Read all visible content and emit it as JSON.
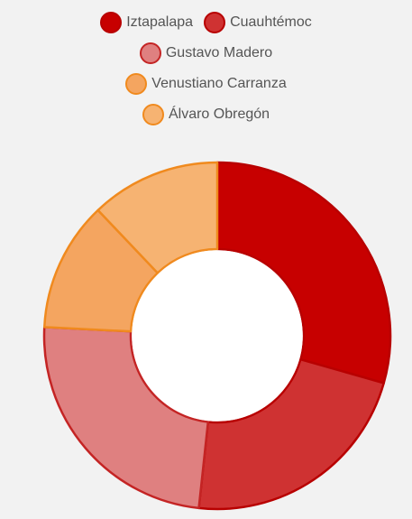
{
  "chart_data": {
    "type": "pie",
    "variant": "donut",
    "title": "",
    "categories": [
      "Iztapalapa",
      "Cuauhtémoc",
      "Gustavo Madero",
      "Venustiano Carranza",
      "Álvaro Obregón"
    ],
    "values": [
      29.4,
      22.3,
      24.1,
      12.1,
      12.1
    ],
    "colors": [
      "#c70000",
      "#cf3232",
      "#df8080",
      "#f4a560",
      "#f6b372"
    ],
    "border_colors": [
      "#b80000",
      "#b80000",
      "#c42424",
      "#f08a1e",
      "#f08a1e"
    ],
    "legend_position": "top",
    "start_angle_deg": 0,
    "direction": "clockwise"
  }
}
